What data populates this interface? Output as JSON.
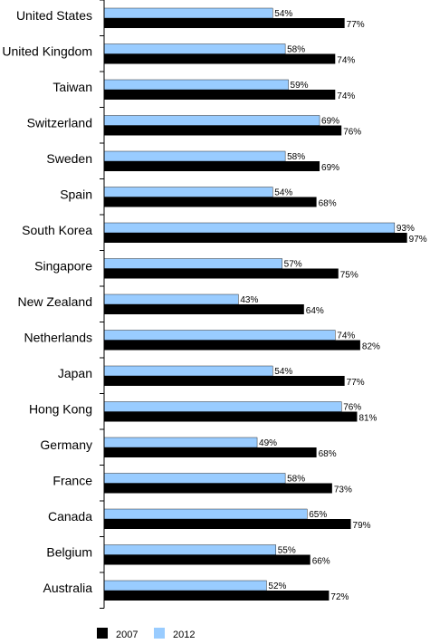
{
  "chart_data": {
    "type": "bar",
    "orientation": "horizontal",
    "categories": [
      "United States",
      "United Kingdom",
      "Taiwan",
      "Switzerland",
      "Sweden",
      "Spain",
      "South Korea",
      "Singapore",
      "New Zealand",
      "Netherlands",
      "Japan",
      "Hong Kong",
      "Germany",
      "France",
      "Canada",
      "Belgium",
      "Australia"
    ],
    "series": [
      {
        "name": "2007",
        "color": "#000000",
        "values": [
          77,
          74,
          74,
          76,
          69,
          68,
          97,
          75,
          64,
          82,
          77,
          81,
          68,
          73,
          79,
          66,
          72
        ],
        "labels": [
          "77%",
          "74%",
          "74%",
          "76%",
          "69%",
          "68%",
          "97%",
          "75%",
          "64%",
          "82%",
          "77%",
          "81%",
          "68%",
          "73%",
          "79%",
          "66%",
          "72%"
        ]
      },
      {
        "name": "2012",
        "color": "#99ccff",
        "values": [
          54,
          58,
          59,
          69,
          58,
          54,
          93,
          57,
          43,
          74,
          54,
          76,
          49,
          58,
          65,
          55,
          52
        ],
        "labels": [
          "54%",
          "58%",
          "59%",
          "69%",
          "58%",
          "54%",
          "93%",
          "57%",
          "43%",
          "74%",
          "54%",
          "76%",
          "49%",
          "58%",
          "65%",
          "55%",
          "52%"
        ]
      }
    ],
    "xlim": [
      0,
      100
    ],
    "value_suffix": "%",
    "grid": false,
    "legend_position": "bottom-left"
  }
}
